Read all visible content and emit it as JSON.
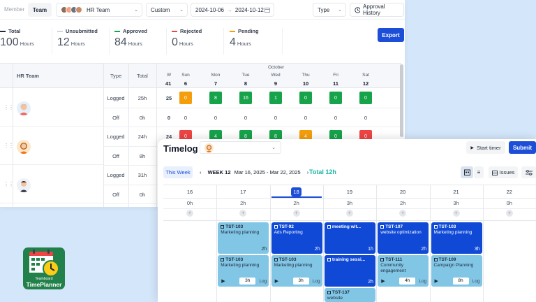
{
  "colors": {
    "accent": "#1d4ed8",
    "approved": "#16a34a",
    "rejected": "#ef4444",
    "pending": "#f59e0b",
    "teal": "#14b8a6",
    "card_light": "#82c6e6",
    "card_dark": "#0f49d6"
  },
  "approval": {
    "tabs": [
      "Member",
      "Team"
    ],
    "team_select": "HR Team",
    "range_select": "Custom",
    "date_from": "2024-10-06",
    "date_to": "2024-10-12",
    "type_select": "Type",
    "approval_history": "Approval History",
    "export": "Export",
    "stats": [
      {
        "label": "Total",
        "value": "100",
        "unit": "Hours",
        "color": "#1f2937"
      },
      {
        "label": "Unsubmitted",
        "value": "12",
        "unit": "Hours",
        "color": "#d1d5db"
      },
      {
        "label": "Approved",
        "value": "84",
        "unit": "Hours",
        "color": "#16a34a"
      },
      {
        "label": "Rejected",
        "value": "0",
        "unit": "Hours",
        "color": "#ef4444"
      },
      {
        "label": "Pending",
        "value": "4",
        "unit": "Hours",
        "color": "#f59e0b"
      }
    ],
    "grid": {
      "team_header": "HR Team",
      "type_header": "Type",
      "total_header": "Total",
      "month": "October",
      "week_label": "W",
      "week_number": "41",
      "days": [
        {
          "name": "Sun",
          "date": "6"
        },
        {
          "name": "Mon",
          "date": "7"
        },
        {
          "name": "Tue",
          "date": "8"
        },
        {
          "name": "Wed",
          "date": "9"
        },
        {
          "name": "Thu",
          "date": "10"
        },
        {
          "name": "Fri",
          "date": "11"
        },
        {
          "name": "Sat",
          "date": "12"
        }
      ],
      "rows": [
        {
          "type": "Logged",
          "total": "25h",
          "week": "25",
          "cells": [
            {
              "v": "0",
              "c": "y"
            },
            {
              "v": "8",
              "c": "g"
            },
            {
              "v": "16",
              "c": "g"
            },
            {
              "v": "1",
              "c": "g"
            },
            {
              "v": "0",
              "c": "g"
            },
            {
              "v": "0",
              "c": "g"
            },
            {
              "v": "0",
              "c": "g"
            }
          ]
        },
        {
          "type": "Off",
          "total": "0h",
          "week": "0",
          "cells": [
            {
              "v": "0",
              "c": ""
            },
            {
              "v": "0",
              "c": ""
            },
            {
              "v": "0",
              "c": ""
            },
            {
              "v": "0",
              "c": ""
            },
            {
              "v": "0",
              "c": ""
            },
            {
              "v": "0",
              "c": ""
            },
            {
              "v": "0",
              "c": ""
            }
          ]
        },
        {
          "type": "Logged",
          "total": "24h",
          "week": "24",
          "cells": [
            {
              "v": "0",
              "c": "r"
            },
            {
              "v": "4",
              "c": "g"
            },
            {
              "v": "8",
              "c": "g"
            },
            {
              "v": "8",
              "c": "g"
            },
            {
              "v": "4",
              "c": "y"
            },
            {
              "v": "0",
              "c": "g"
            },
            {
              "v": "0",
              "c": "r"
            }
          ]
        },
        {
          "type": "Off",
          "total": "8h",
          "week": "",
          "cells": []
        },
        {
          "type": "Logged",
          "total": "31h",
          "week": "",
          "cells": []
        },
        {
          "type": "Off",
          "total": "0h",
          "week": "",
          "cells": []
        }
      ]
    }
  },
  "timelog": {
    "title": "Timelog",
    "start_timer": "Start timer",
    "submit": "Submit",
    "this_week": "This Week",
    "week_label": "WEEK 12",
    "week_range": "Mar 16, 2025 - Mar 22, 2025",
    "total": "Total 12h",
    "issues": "Issues",
    "days": [
      {
        "date": "16",
        "hours": "0h"
      },
      {
        "date": "17",
        "hours": "2h"
      },
      {
        "date": "18",
        "hours": "2h",
        "today": true
      },
      {
        "date": "19",
        "hours": "3h"
      },
      {
        "date": "20",
        "hours": "2h"
      },
      {
        "date": "21",
        "hours": "3h"
      },
      {
        "date": "22",
        "hours": "0h"
      }
    ],
    "cards": [
      {
        "col": 1,
        "row": 0,
        "style": "light",
        "id": "TST-103",
        "title": "Marketing planning",
        "duration": "2h"
      },
      {
        "col": 2,
        "row": 0,
        "style": "dark",
        "id": "TST-92",
        "title": "Ads Reporting",
        "duration": "2h"
      },
      {
        "col": 3,
        "row": 0,
        "style": "dark",
        "id": "meeting wit...",
        "title": "",
        "duration": "1h"
      },
      {
        "col": 4,
        "row": 0,
        "style": "dark",
        "id": "TST-107",
        "title": "website optimization",
        "duration": "2h"
      },
      {
        "col": 5,
        "row": 0,
        "style": "dark",
        "id": "TST-103",
        "title": "Marketing planning",
        "duration": "3h"
      },
      {
        "col": 1,
        "row": 1,
        "style": "light",
        "id": "TST-103",
        "title": "Marketing planning",
        "box": "3h",
        "log": "Log"
      },
      {
        "col": 2,
        "row": 1,
        "style": "light",
        "id": "TST-103",
        "title": "Marketing planning",
        "box": "3h",
        "log": "Log"
      },
      {
        "col": 3,
        "row": 1,
        "style": "dark",
        "id": "training sessi...",
        "title": "",
        "duration": "2h"
      },
      {
        "col": 4,
        "row": 1,
        "style": "light",
        "id": "TST-111",
        "title": "Community engagement",
        "box": "4h",
        "log": "Log"
      },
      {
        "col": 5,
        "row": 1,
        "style": "light",
        "id": "TST-109",
        "title": "Campaign Planning",
        "box": "8h",
        "log": "Log"
      },
      {
        "col": 3,
        "row": 2,
        "style": "light",
        "id": "TST-137",
        "title": "website",
        "duration": ""
      }
    ]
  },
  "logo": {
    "line1": "Teamboard",
    "line2": "TimePlanner"
  }
}
